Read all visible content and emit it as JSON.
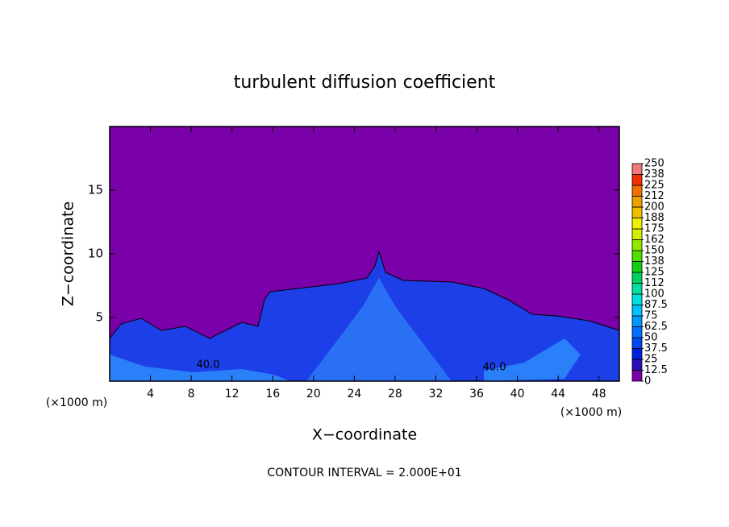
{
  "chart_data": {
    "type": "contour",
    "title": "turbulent diffusion coefficient",
    "xlabel": "X−coordinate",
    "ylabel": "Z−coordinate",
    "x_unit_label": "(×1000 m)",
    "y_unit_label": "(×1000 m)",
    "annotation": "CONTOUR INTERVAL = 2.000E+01",
    "contour_labels": [
      "40.0",
      "40.0"
    ],
    "xlim": [
      0,
      50
    ],
    "ylim": [
      0,
      20
    ],
    "xticks": [
      4,
      8,
      12,
      16,
      20,
      24,
      28,
      32,
      36,
      40,
      44,
      48
    ],
    "yticks": [
      5,
      10,
      15
    ],
    "colorbar_ticks": [
      0,
      12.5,
      25,
      37.5,
      50,
      62.5,
      75,
      87.5,
      100,
      {
        "value": 112.5,
        "label": "112"
      },
      125,
      {
        "value": 137.5,
        "label": "138"
      },
      150,
      {
        "value": 162.5,
        "label": "162"
      },
      175,
      {
        "value": 187.5,
        "label": "188"
      },
      200,
      {
        "value": 212.5,
        "label": "212"
      },
      225,
      {
        "value": 237.5,
        "label": "238"
      },
      250
    ],
    "colorbar_colors": [
      "#7a00aa",
      "#2a10b8",
      "#0020e0",
      "#0048f0",
      "#0070ff",
      "#0098ff",
      "#00c0ff",
      "#00e0e0",
      "#00e0a0",
      "#00d060",
      "#10d010",
      "#50e000",
      "#90e800",
      "#d0f000",
      "#f0f000",
      "#f0c000",
      "#f0a000",
      "#f07000",
      "#f03000",
      "#f07878"
    ]
  }
}
